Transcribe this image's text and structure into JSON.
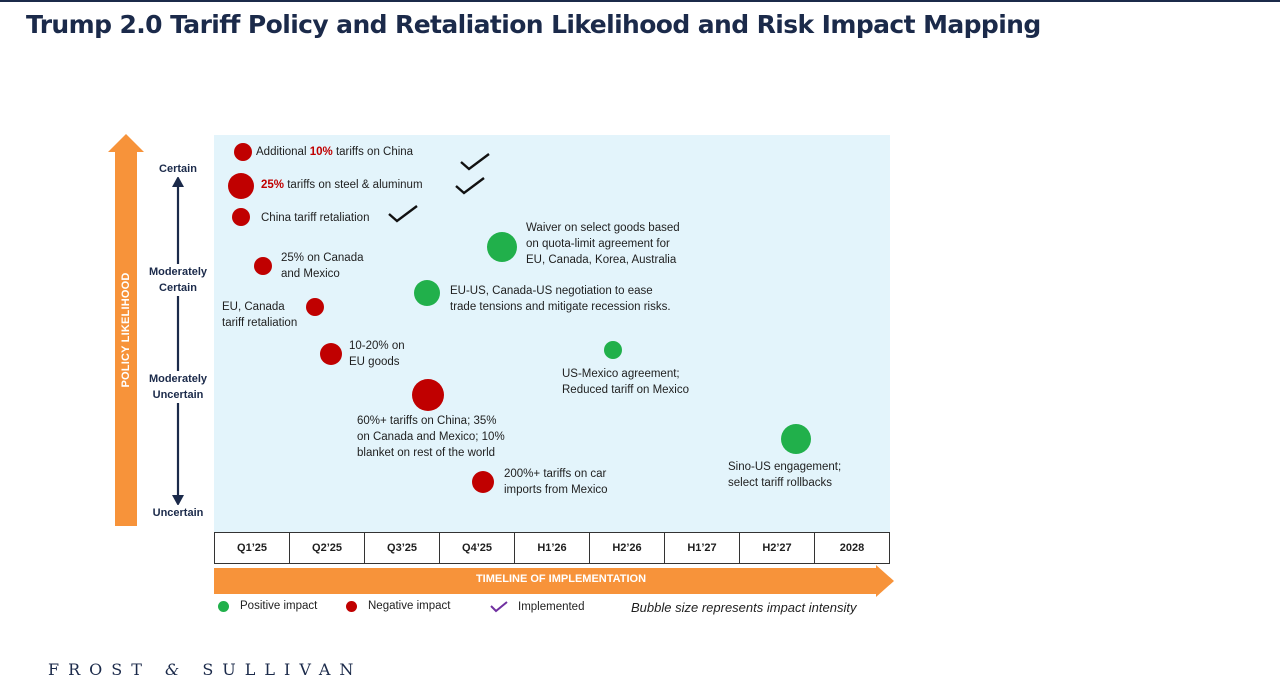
{
  "title": "Trump 2.0 Tariff Policy and Retaliation Likelihood and Risk Impact Mapping",
  "y_axis": {
    "title": "POLICY LIKELIHOOD",
    "levels": [
      "Certain",
      "Moderately Certain",
      "Moderately Uncertain",
      "Uncertain"
    ]
  },
  "x_axis": {
    "title": "TIMELINE OF IMPLEMENTATION",
    "periods": [
      "Q1’25",
      "Q2’25",
      "Q3’25",
      "Q4’25",
      "H1’26",
      "H2’26",
      "H1’27",
      "H2’27",
      "2028"
    ]
  },
  "legend": {
    "positive": "Positive impact",
    "negative": "Negative impact",
    "implemented": "Implemented",
    "note": "Bubble size represents impact intensity"
  },
  "colors": {
    "positive": "#21b04b",
    "negative": "#c00000",
    "implemented": "#7030a0",
    "axis_arrow": "#f7933a",
    "navy": "#1b2a4a",
    "plot_bg": "#e3f4fb"
  },
  "icons": [
    "check-icon",
    "up-arrow-icon",
    "right-arrow-icon",
    "double-arrow-icon"
  ],
  "chart_data": {
    "type": "scatter",
    "x": "period of implementation",
    "y": "policy likelihood",
    "points": [
      {
        "id": "p1",
        "impact": "negative",
        "period": "Q1’25",
        "likelihood": "Certain",
        "size": "small",
        "implemented": true,
        "label": {
          "pre": "Additional ",
          "highlight": "10%",
          "post": " tariffs on China"
        }
      },
      {
        "id": "p2",
        "impact": "negative",
        "period": "Q1’25",
        "likelihood": "Certain",
        "size": "medium",
        "implemented": true,
        "label": {
          "pre": "",
          "highlight": "25%",
          "post": " tariffs on steel & aluminum"
        }
      },
      {
        "id": "p3",
        "impact": "negative",
        "period": "Q1’25",
        "likelihood": "Certain",
        "size": "small",
        "implemented": true,
        "label": {
          "text": "China tariff retaliation"
        }
      },
      {
        "id": "p4",
        "impact": "negative",
        "period": "Q1’25",
        "likelihood": "Moderately Certain",
        "size": "small",
        "implemented": false,
        "label": {
          "lines": [
            "25% on Canada",
            "and Mexico"
          ]
        }
      },
      {
        "id": "p5",
        "impact": "negative",
        "period": "Q2’25",
        "likelihood": "Moderately Certain",
        "size": "small",
        "implemented": false,
        "label": {
          "lines": [
            "EU, Canada",
            "tariff retaliation"
          ]
        }
      },
      {
        "id": "p6",
        "impact": "negative",
        "period": "Q2’25",
        "likelihood": "Moderately Uncertain",
        "size": "medium",
        "implemented": false,
        "label": {
          "lines": [
            "10-20% on",
            "EU goods"
          ]
        }
      },
      {
        "id": "p7",
        "impact": "negative",
        "period": "Q3’25",
        "likelihood": "Moderately Uncertain",
        "size": "large",
        "implemented": false,
        "label": {
          "lines": [
            "60%+ tariffs on China; 35%",
            "on Canada and Mexico; 10%",
            "blanket on rest of the world"
          ]
        }
      },
      {
        "id": "p8",
        "impact": "negative",
        "period": "Q4’25",
        "likelihood": "Uncertain",
        "size": "medium",
        "implemented": false,
        "label": {
          "lines": [
            "200%+ tariffs on car",
            "imports from Mexico"
          ]
        }
      },
      {
        "id": "p9",
        "impact": "positive",
        "period": "Q4’25",
        "likelihood": "Moderately Certain",
        "size": "large",
        "implemented": false,
        "label": {
          "lines": [
            "Waiver on select goods based",
            "on quota-limit agreement for",
            "EU, Canada, Korea, Australia"
          ]
        }
      },
      {
        "id": "p10",
        "impact": "positive",
        "period": "Q3’25",
        "likelihood": "Moderately Certain",
        "size": "medium",
        "implemented": false,
        "label": {
          "lines": [
            "EU-US, Canada-US negotiation to ease",
            "trade tensions and mitigate recession risks."
          ]
        }
      },
      {
        "id": "p11",
        "impact": "positive",
        "period": "H2’26",
        "likelihood": "Moderately Uncertain",
        "size": "small",
        "implemented": false,
        "label": {
          "lines": [
            "US-Mexico agreement;",
            "Reduced tariff on Mexico"
          ]
        }
      },
      {
        "id": "p12",
        "impact": "positive",
        "period": "H2’27",
        "likelihood": "Moderately Uncertain",
        "size": "large",
        "implemented": false,
        "label": {
          "lines": [
            "Sino-US engagement;",
            "select tariff rollbacks"
          ]
        }
      }
    ]
  },
  "footer": {
    "logo_left": "FROST",
    "logo_amp": "&",
    "logo_right": "SULLIVAN"
  }
}
